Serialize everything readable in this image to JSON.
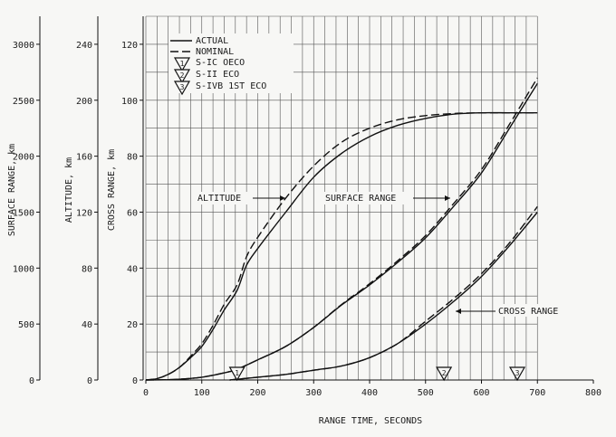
{
  "chart_data": {
    "type": "line",
    "title": "",
    "xlabel": "RANGE TIME, SECONDS",
    "xlim": [
      0,
      800
    ],
    "x_ticks": [
      0,
      100,
      200,
      300,
      400,
      500,
      600,
      700,
      800
    ],
    "grid": true,
    "y_axes": [
      {
        "key": "cross",
        "label": "CROSS RANGE, km",
        "lim": [
          0,
          130
        ],
        "ticks": [
          0,
          20,
          40,
          60,
          80,
          100,
          120
        ]
      },
      {
        "key": "altitude",
        "label": "ALTITUDE, km",
        "lim": [
          0,
          260
        ],
        "ticks": [
          0,
          40,
          80,
          120,
          160,
          200,
          240
        ]
      },
      {
        "key": "surface",
        "label": "SURFACE RANGE, km",
        "lim": [
          0,
          3250
        ],
        "ticks": [
          0,
          500,
          1000,
          1500,
          2000,
          2500,
          3000
        ]
      }
    ],
    "legend": {
      "placement": "top-left",
      "entries": [
        {
          "label": "ACTUAL",
          "style": "solid"
        },
        {
          "label": "NOMINAL",
          "style": "dashed"
        }
      ],
      "events": [
        {
          "num": "1",
          "label": "S-IC OECO"
        },
        {
          "num": "2",
          "label": "S-II ECO"
        },
        {
          "num": "3",
          "label": "S-IVB 1ST ECO"
        }
      ]
    },
    "events": [
      {
        "num": "1",
        "x": 163
      },
      {
        "num": "2",
        "x": 533
      },
      {
        "num": "3",
        "x": 664
      }
    ],
    "series": [
      {
        "name": "ALTITUDE",
        "variant": "actual",
        "axis": "altitude",
        "x": [
          0,
          20,
          40,
          60,
          80,
          100,
          120,
          140,
          163,
          180,
          200,
          250,
          300,
          350,
          400,
          450,
          500,
          550,
          600,
          650,
          700
        ],
        "y": [
          0,
          1,
          4,
          9,
          16,
          24,
          36,
          50,
          64,
          82,
          94,
          120,
          145,
          162,
          174,
          182,
          187,
          190,
          191,
          191,
          191
        ]
      },
      {
        "name": "ALTITUDE",
        "variant": "nominal",
        "axis": "altitude",
        "x": [
          0,
          20,
          40,
          60,
          80,
          100,
          120,
          140,
          163,
          180,
          200,
          250,
          300,
          350,
          400,
          450,
          500,
          550,
          600,
          650,
          700
        ],
        "y": [
          0,
          1,
          4,
          9,
          17,
          26,
          39,
          54,
          68,
          88,
          102,
          130,
          153,
          170,
          180,
          186,
          189,
          190.5,
          191,
          191,
          191
        ]
      },
      {
        "name": "SURFACE RANGE",
        "variant": "actual",
        "axis": "surface",
        "x": [
          0,
          50,
          100,
          150,
          163,
          200,
          250,
          300,
          350,
          400,
          450,
          500,
          550,
          600,
          650,
          700
        ],
        "y": [
          0,
          5,
          25,
          75,
          95,
          180,
          300,
          470,
          670,
          850,
          1050,
          1270,
          1550,
          1850,
          2250,
          2650
        ]
      },
      {
        "name": "SURFACE RANGE",
        "variant": "nominal",
        "axis": "surface",
        "x": [
          0,
          50,
          100,
          150,
          163,
          200,
          250,
          300,
          350,
          400,
          450,
          500,
          550,
          600,
          650,
          700
        ],
        "y": [
          0,
          5,
          25,
          75,
          95,
          180,
          300,
          470,
          675,
          860,
          1065,
          1290,
          1575,
          1880,
          2285,
          2700
        ]
      },
      {
        "name": "CROSS RANGE",
        "variant": "actual",
        "axis": "cross",
        "x": [
          150,
          200,
          250,
          300,
          350,
          400,
          450,
          500,
          550,
          600,
          650,
          700
        ],
        "y": [
          0,
          1,
          2,
          3.5,
          5,
          8,
          13,
          20,
          28,
          37,
          48,
          60
        ]
      },
      {
        "name": "CROSS RANGE",
        "variant": "nominal",
        "axis": "cross",
        "x": [
          150,
          200,
          250,
          300,
          350,
          400,
          450,
          500,
          550,
          600,
          650,
          700
        ],
        "y": [
          0,
          1,
          2,
          3.5,
          5,
          8,
          13,
          21,
          29,
          38,
          49,
          62
        ]
      }
    ],
    "annotations": [
      {
        "text": "ALTITUDE",
        "series": "ALTITUDE"
      },
      {
        "text": "SURFACE RANGE",
        "series": "SURFACE RANGE"
      },
      {
        "text": "CROSS RANGE",
        "series": "CROSS RANGE"
      }
    ]
  },
  "colors": {
    "ink": "#111111",
    "paper": "#f7f7f5"
  }
}
